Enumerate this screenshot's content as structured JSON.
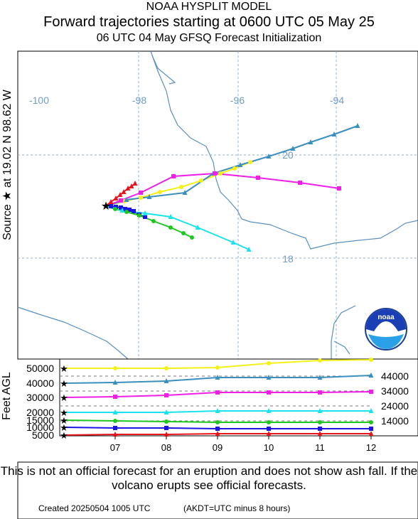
{
  "header": {
    "title1": "NOAA HYSPLIT MODEL",
    "title2": "Forward trajectories starting at 0600 UTC 05 May 25",
    "title3": "06 UTC 04 May     GFSQ  Forecast Initialization"
  },
  "source_label": "Source ★  at    19.02 N    98.62 W",
  "map": {
    "lon_ticks": [
      "-100",
      "-98",
      "-96",
      "-94"
    ],
    "lat_ticks": [
      "20",
      "18"
    ],
    "logo_text": "noaa",
    "trajectory_colors": {
      "5000": "#e8161b",
      "10000": "#1a14e6",
      "15000": "#1ec81e",
      "20000": "#19e3ec",
      "30000": "#f01ee6",
      "40000": "#3b8fbf",
      "50000": "#f4f01a"
    }
  },
  "altitude_panel": {
    "y_label": "Feet AGL",
    "left_ticks": [
      "50000",
      "40000",
      "30000",
      "20000",
      "15000",
      "10000",
      "5000"
    ],
    "right_ticks": [
      "44000",
      "34000",
      "24000",
      "14000"
    ],
    "x_ticks": [
      "07",
      "08",
      "09",
      "10",
      "11",
      "12"
    ]
  },
  "footer": {
    "disclaimer": "This is not an official forecast for an eruption and does not show ash fall. If the volcano erupts see official forecasts.",
    "created": "Created 20250504 1005 UTC",
    "akdt": "(AKDT=UTC minus 8 hours)"
  }
}
